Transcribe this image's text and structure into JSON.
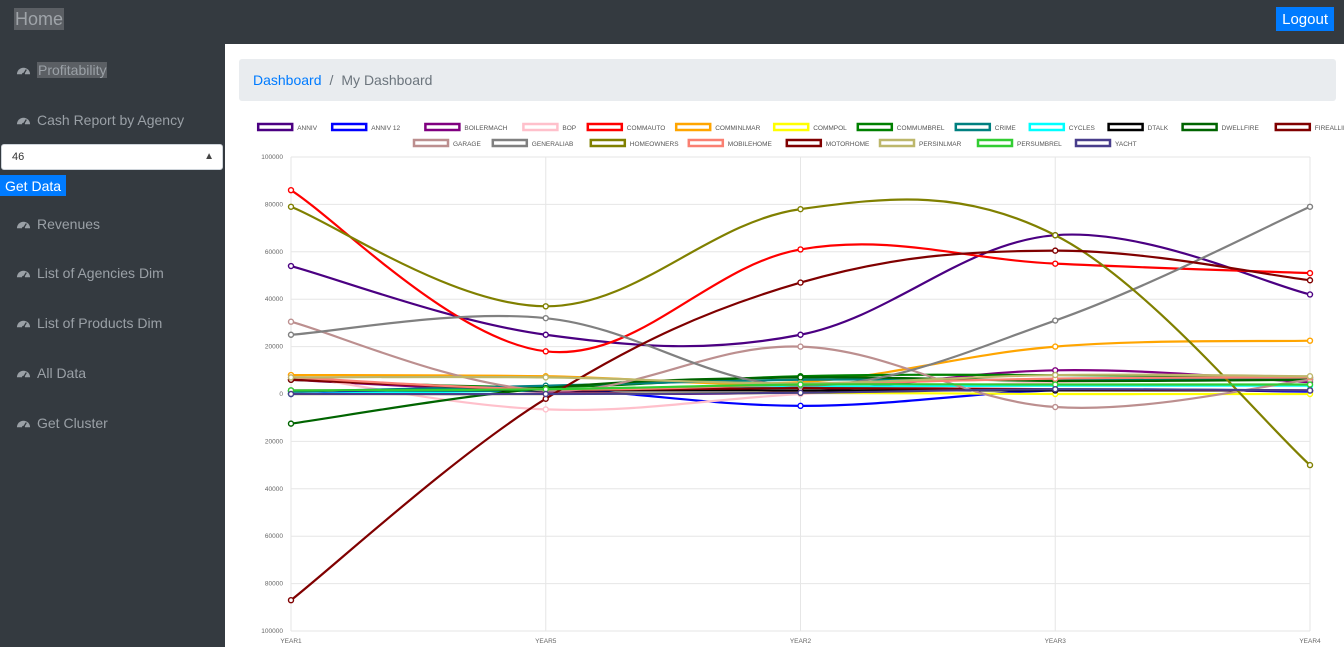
{
  "header": {
    "home_label": "Home",
    "logout_label": "Logout"
  },
  "sidebar": {
    "items": [
      {
        "label": "Profitability"
      },
      {
        "label": "Cash Report by Agency"
      },
      {
        "label": "Revenues"
      },
      {
        "label": "List of Agencies Dim"
      },
      {
        "label": "List of Products Dim"
      },
      {
        "label": "All Data"
      },
      {
        "label": "Get Cluster"
      }
    ],
    "agency_select_value": "46",
    "get_data_label": "Get Data"
  },
  "breadcrumb": {
    "link": "Dashboard",
    "separator": "/",
    "current": "My Dashboard"
  },
  "colors": {
    "accent": "#007bff",
    "dark": "#343a40"
  },
  "chart_data": {
    "type": "line",
    "categories": [
      "YEAR1",
      "YEAR5",
      "YEAR2",
      "YEAR3",
      "YEAR4"
    ],
    "ylim": [
      -100000,
      100000
    ],
    "y_ticks": [
      "100000",
      "80000",
      "60000",
      "40000",
      "20000",
      "0",
      "20000",
      "40000",
      "60000",
      "80000",
      "100000"
    ],
    "grid": true,
    "legend_position": "top",
    "series": [
      {
        "name": "ANNIV",
        "color": "#4b0082",
        "values": [
          54000,
          25000,
          25000,
          67000,
          42000
        ]
      },
      {
        "name": "ANNIV  12",
        "color": "#0000ff",
        "values": [
          0,
          2000,
          -5000,
          1500,
          1000
        ]
      },
      {
        "name": "BOILERMACH",
        "color": "#800080",
        "values": [
          6000,
          1000,
          1000,
          10000,
          5000
        ]
      },
      {
        "name": "BOP",
        "color": "#ffc0cb",
        "values": [
          8000,
          -6500,
          0,
          5000,
          6000
        ]
      },
      {
        "name": "COMMAUTO",
        "color": "#ff0000",
        "values": [
          86000,
          18000,
          61000,
          55000,
          51000
        ]
      },
      {
        "name": "COMMINLMAR",
        "color": "#ffa500",
        "values": [
          8000,
          7500,
          5000,
          20000,
          22500
        ]
      },
      {
        "name": "COMMPOL",
        "color": "#ffff00",
        "values": [
          0,
          0,
          500,
          0,
          0
        ]
      },
      {
        "name": "COMMUMBREL",
        "color": "#008000",
        "values": [
          6000,
          3000,
          7500,
          8000,
          7000
        ]
      },
      {
        "name": "CRIME",
        "color": "#008080",
        "values": [
          1000,
          3500,
          6000,
          6000,
          6500
        ]
      },
      {
        "name": "CYCLES",
        "color": "#00ffff",
        "values": [
          0,
          1500,
          3000,
          3500,
          3500
        ]
      },
      {
        "name": "DTALK",
        "color": "#000000",
        "values": [
          1500,
          1500,
          1500,
          1500,
          1500
        ]
      },
      {
        "name": "DWELLFIRE",
        "color": "#006400",
        "values": [
          -12500,
          2500,
          7000,
          5500,
          6000
        ]
      },
      {
        "name": "FIREALLIED",
        "color": "#800000",
        "values": [
          6000,
          2000,
          2500,
          2000,
          1500
        ]
      },
      {
        "name": "GARAGE",
        "color": "#bc8f8f",
        "values": [
          30500,
          1500,
          20000,
          -5500,
          6000
        ]
      },
      {
        "name": "GENERALIAB",
        "color": "#808080",
        "values": [
          25000,
          32000,
          3500,
          31000,
          79000
        ]
      },
      {
        "name": "HOMEOWNERS",
        "color": "#808000",
        "values": [
          79000,
          37000,
          78000,
          67000,
          -30000
        ]
      },
      {
        "name": "MOBILEHOME",
        "color": "#fa8072",
        "values": [
          7000,
          2000,
          4000,
          6500,
          7000
        ]
      },
      {
        "name": "MOTORHOME",
        "color": "#800000",
        "values": [
          -87000,
          -2000,
          47000,
          60500,
          48000
        ]
      },
      {
        "name": "PERSINLMAR",
        "color": "#bdb76b",
        "values": [
          7000,
          7000,
          4500,
          8000,
          7500
        ]
      },
      {
        "name": "PERSUMBREL",
        "color": "#32cd32",
        "values": [
          1500,
          2000,
          4000,
          4000,
          4000
        ]
      },
      {
        "name": "YACHT",
        "color": "#483d8b",
        "values": [
          0,
          0,
          500,
          2000,
          1500
        ]
      }
    ]
  }
}
